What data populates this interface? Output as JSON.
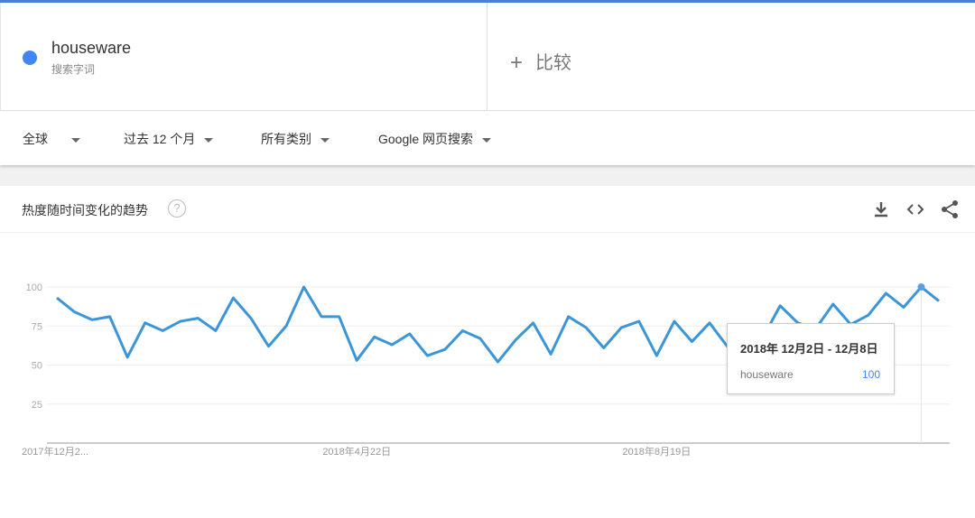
{
  "search": {
    "term": "houseware",
    "term_type": "搜索字词",
    "term_color": "#4285f4",
    "compare_label": "比较",
    "compare_icon": "plus-icon"
  },
  "filters": [
    {
      "label": "全球"
    },
    {
      "label": "过去 12 个月"
    },
    {
      "label": "所有类别"
    },
    {
      "label": "Google 网页搜索"
    }
  ],
  "card": {
    "title": "热度随时间变化的趋势",
    "icons": [
      "help-icon",
      "download-icon",
      "embed-icon",
      "share-icon"
    ]
  },
  "tooltip": {
    "date": "2018年 12月2日 - 12月8日",
    "series": "houseware",
    "value": "100"
  },
  "chart_data": {
    "type": "line",
    "title": "",
    "xlabel": "",
    "ylabel": "",
    "ylim": [
      0,
      100
    ],
    "yticks": [
      "25",
      "50",
      "75",
      "100"
    ],
    "xtick_labels": [
      {
        "index": 0,
        "label": "2017年12月2..."
      },
      {
        "index": 17,
        "label": "2018年4月22日"
      },
      {
        "index": 34,
        "label": "2018年8月19日"
      }
    ],
    "grid": true,
    "series": [
      {
        "name": "houseware",
        "color": "#3b95d9",
        "values": [
          93,
          84,
          79,
          81,
          55,
          77,
          72,
          78,
          80,
          72,
          93,
          80,
          62,
          75,
          100,
          81,
          81,
          53,
          68,
          63,
          70,
          56,
          60,
          72,
          67,
          52,
          66,
          77,
          57,
          81,
          74,
          61,
          74,
          78,
          56,
          78,
          65,
          77,
          62,
          64,
          67,
          88,
          77,
          73,
          89,
          76,
          82,
          96,
          87,
          100,
          91
        ]
      }
    ],
    "highlight_index": 49
  }
}
